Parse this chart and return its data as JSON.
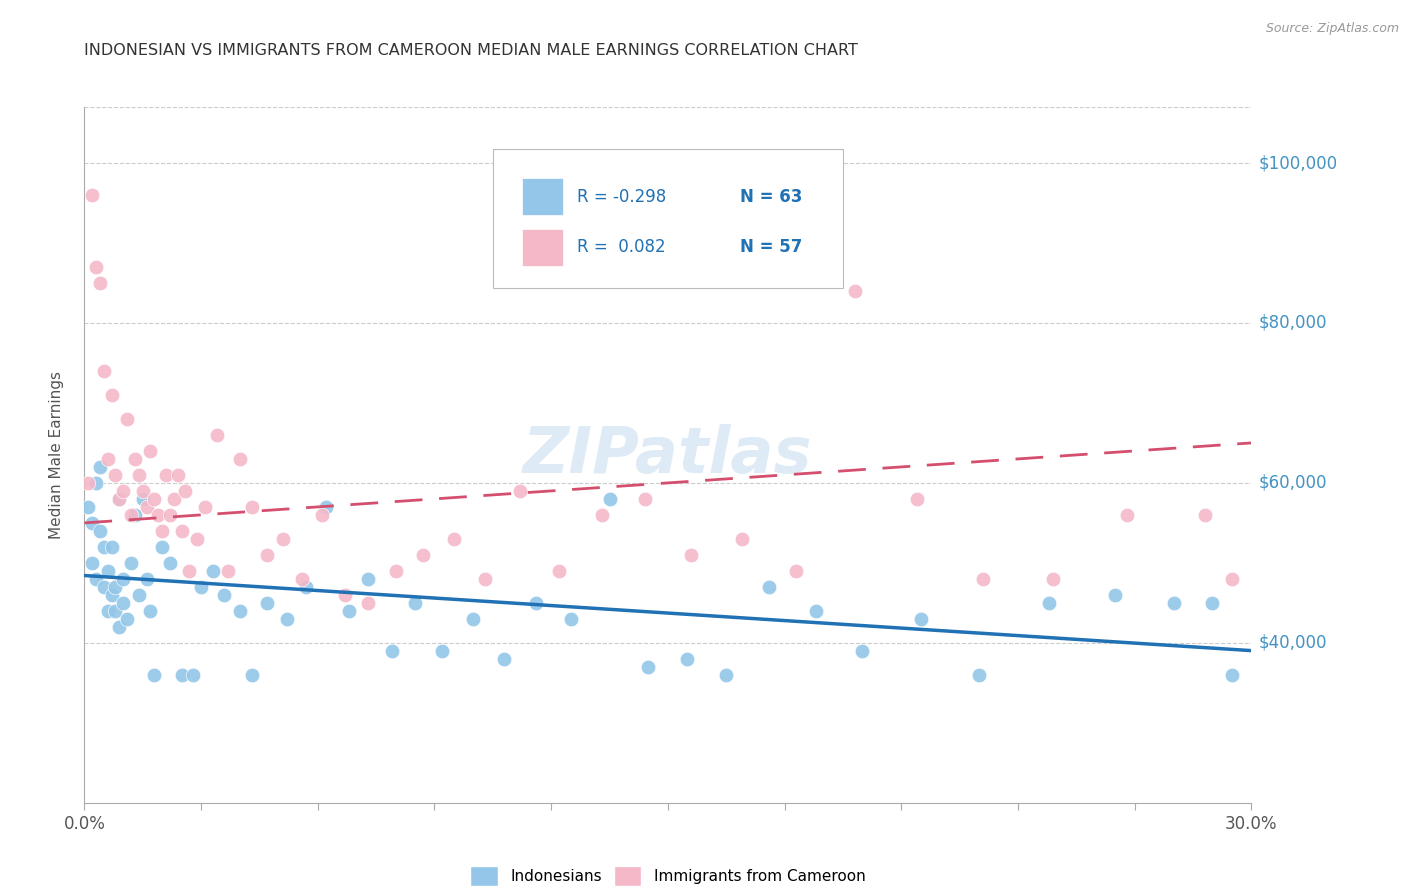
{
  "title": "INDONESIAN VS IMMIGRANTS FROM CAMEROON MEDIAN MALE EARNINGS CORRELATION CHART",
  "source_text": "Source: ZipAtlas.com",
  "ylabel": "Median Male Earnings",
  "ytick_labels": [
    "$100,000",
    "$80,000",
    "$60,000",
    "$40,000"
  ],
  "ytick_values": [
    100000,
    80000,
    60000,
    40000
  ],
  "xmin": 0.0,
  "xmax": 0.3,
  "ymin": 20000,
  "ymax": 107000,
  "legend_line1_r": "R = -0.298",
  "legend_line1_n": "N = 63",
  "legend_line2_r": "R =  0.082",
  "legend_line2_n": "N = 57",
  "label_indonesians": "Indonesians",
  "label_cameroon": "Immigrants from Cameroon",
  "color_blue_dot": "#93c6e8",
  "color_blue_line": "#2171b5",
  "color_pink_dot": "#f4b8c8",
  "color_pink_line": "#d44f6e",
  "color_axis_text": "#4393c3",
  "color_legend_text_r": "#2171b5",
  "color_legend_text_n": "#2171b5",
  "color_grid": "#cccccc",
  "color_title": "#333333",
  "color_source": "#999999",
  "color_ytick": "#555555",
  "color_xtick": "#555555",
  "color_ylabel": "#555555",
  "watermark_color": "#c8dff0",
  "indonesians_x": [
    0.001,
    0.002,
    0.002,
    0.003,
    0.003,
    0.004,
    0.004,
    0.005,
    0.005,
    0.006,
    0.006,
    0.007,
    0.007,
    0.008,
    0.008,
    0.009,
    0.009,
    0.01,
    0.01,
    0.011,
    0.012,
    0.013,
    0.014,
    0.015,
    0.016,
    0.017,
    0.018,
    0.02,
    0.022,
    0.025,
    0.028,
    0.03,
    0.033,
    0.036,
    0.04,
    0.043,
    0.047,
    0.052,
    0.057,
    0.062,
    0.068,
    0.073,
    0.079,
    0.085,
    0.092,
    0.1,
    0.108,
    0.116,
    0.125,
    0.135,
    0.145,
    0.155,
    0.165,
    0.176,
    0.188,
    0.2,
    0.215,
    0.23,
    0.248,
    0.265,
    0.28,
    0.29,
    0.295
  ],
  "indonesians_y": [
    57000,
    55000,
    50000,
    60000,
    48000,
    62000,
    54000,
    47000,
    52000,
    49000,
    44000,
    46000,
    52000,
    47000,
    44000,
    58000,
    42000,
    48000,
    45000,
    43000,
    50000,
    56000,
    46000,
    58000,
    48000,
    44000,
    36000,
    52000,
    50000,
    36000,
    36000,
    47000,
    49000,
    46000,
    44000,
    36000,
    45000,
    43000,
    47000,
    57000,
    44000,
    48000,
    39000,
    45000,
    39000,
    43000,
    38000,
    45000,
    43000,
    58000,
    37000,
    38000,
    36000,
    47000,
    44000,
    39000,
    43000,
    36000,
    45000,
    46000,
    45000,
    45000,
    36000
  ],
  "cameroon_x": [
    0.001,
    0.002,
    0.003,
    0.004,
    0.005,
    0.006,
    0.007,
    0.008,
    0.009,
    0.01,
    0.011,
    0.012,
    0.013,
    0.014,
    0.015,
    0.016,
    0.017,
    0.018,
    0.019,
    0.02,
    0.021,
    0.022,
    0.023,
    0.024,
    0.025,
    0.026,
    0.027,
    0.029,
    0.031,
    0.034,
    0.037,
    0.04,
    0.043,
    0.047,
    0.051,
    0.056,
    0.061,
    0.067,
    0.073,
    0.08,
    0.087,
    0.095,
    0.103,
    0.112,
    0.122,
    0.133,
    0.144,
    0.156,
    0.169,
    0.183,
    0.198,
    0.214,
    0.231,
    0.249,
    0.268,
    0.288,
    0.295
  ],
  "cameroon_y": [
    60000,
    96000,
    87000,
    85000,
    74000,
    63000,
    71000,
    61000,
    58000,
    59000,
    68000,
    56000,
    63000,
    61000,
    59000,
    57000,
    64000,
    58000,
    56000,
    54000,
    61000,
    56000,
    58000,
    61000,
    54000,
    59000,
    49000,
    53000,
    57000,
    66000,
    49000,
    63000,
    57000,
    51000,
    53000,
    48000,
    56000,
    46000,
    45000,
    49000,
    51000,
    53000,
    48000,
    59000,
    49000,
    56000,
    58000,
    51000,
    53000,
    49000,
    84000,
    58000,
    48000,
    48000,
    56000,
    56000,
    48000
  ]
}
